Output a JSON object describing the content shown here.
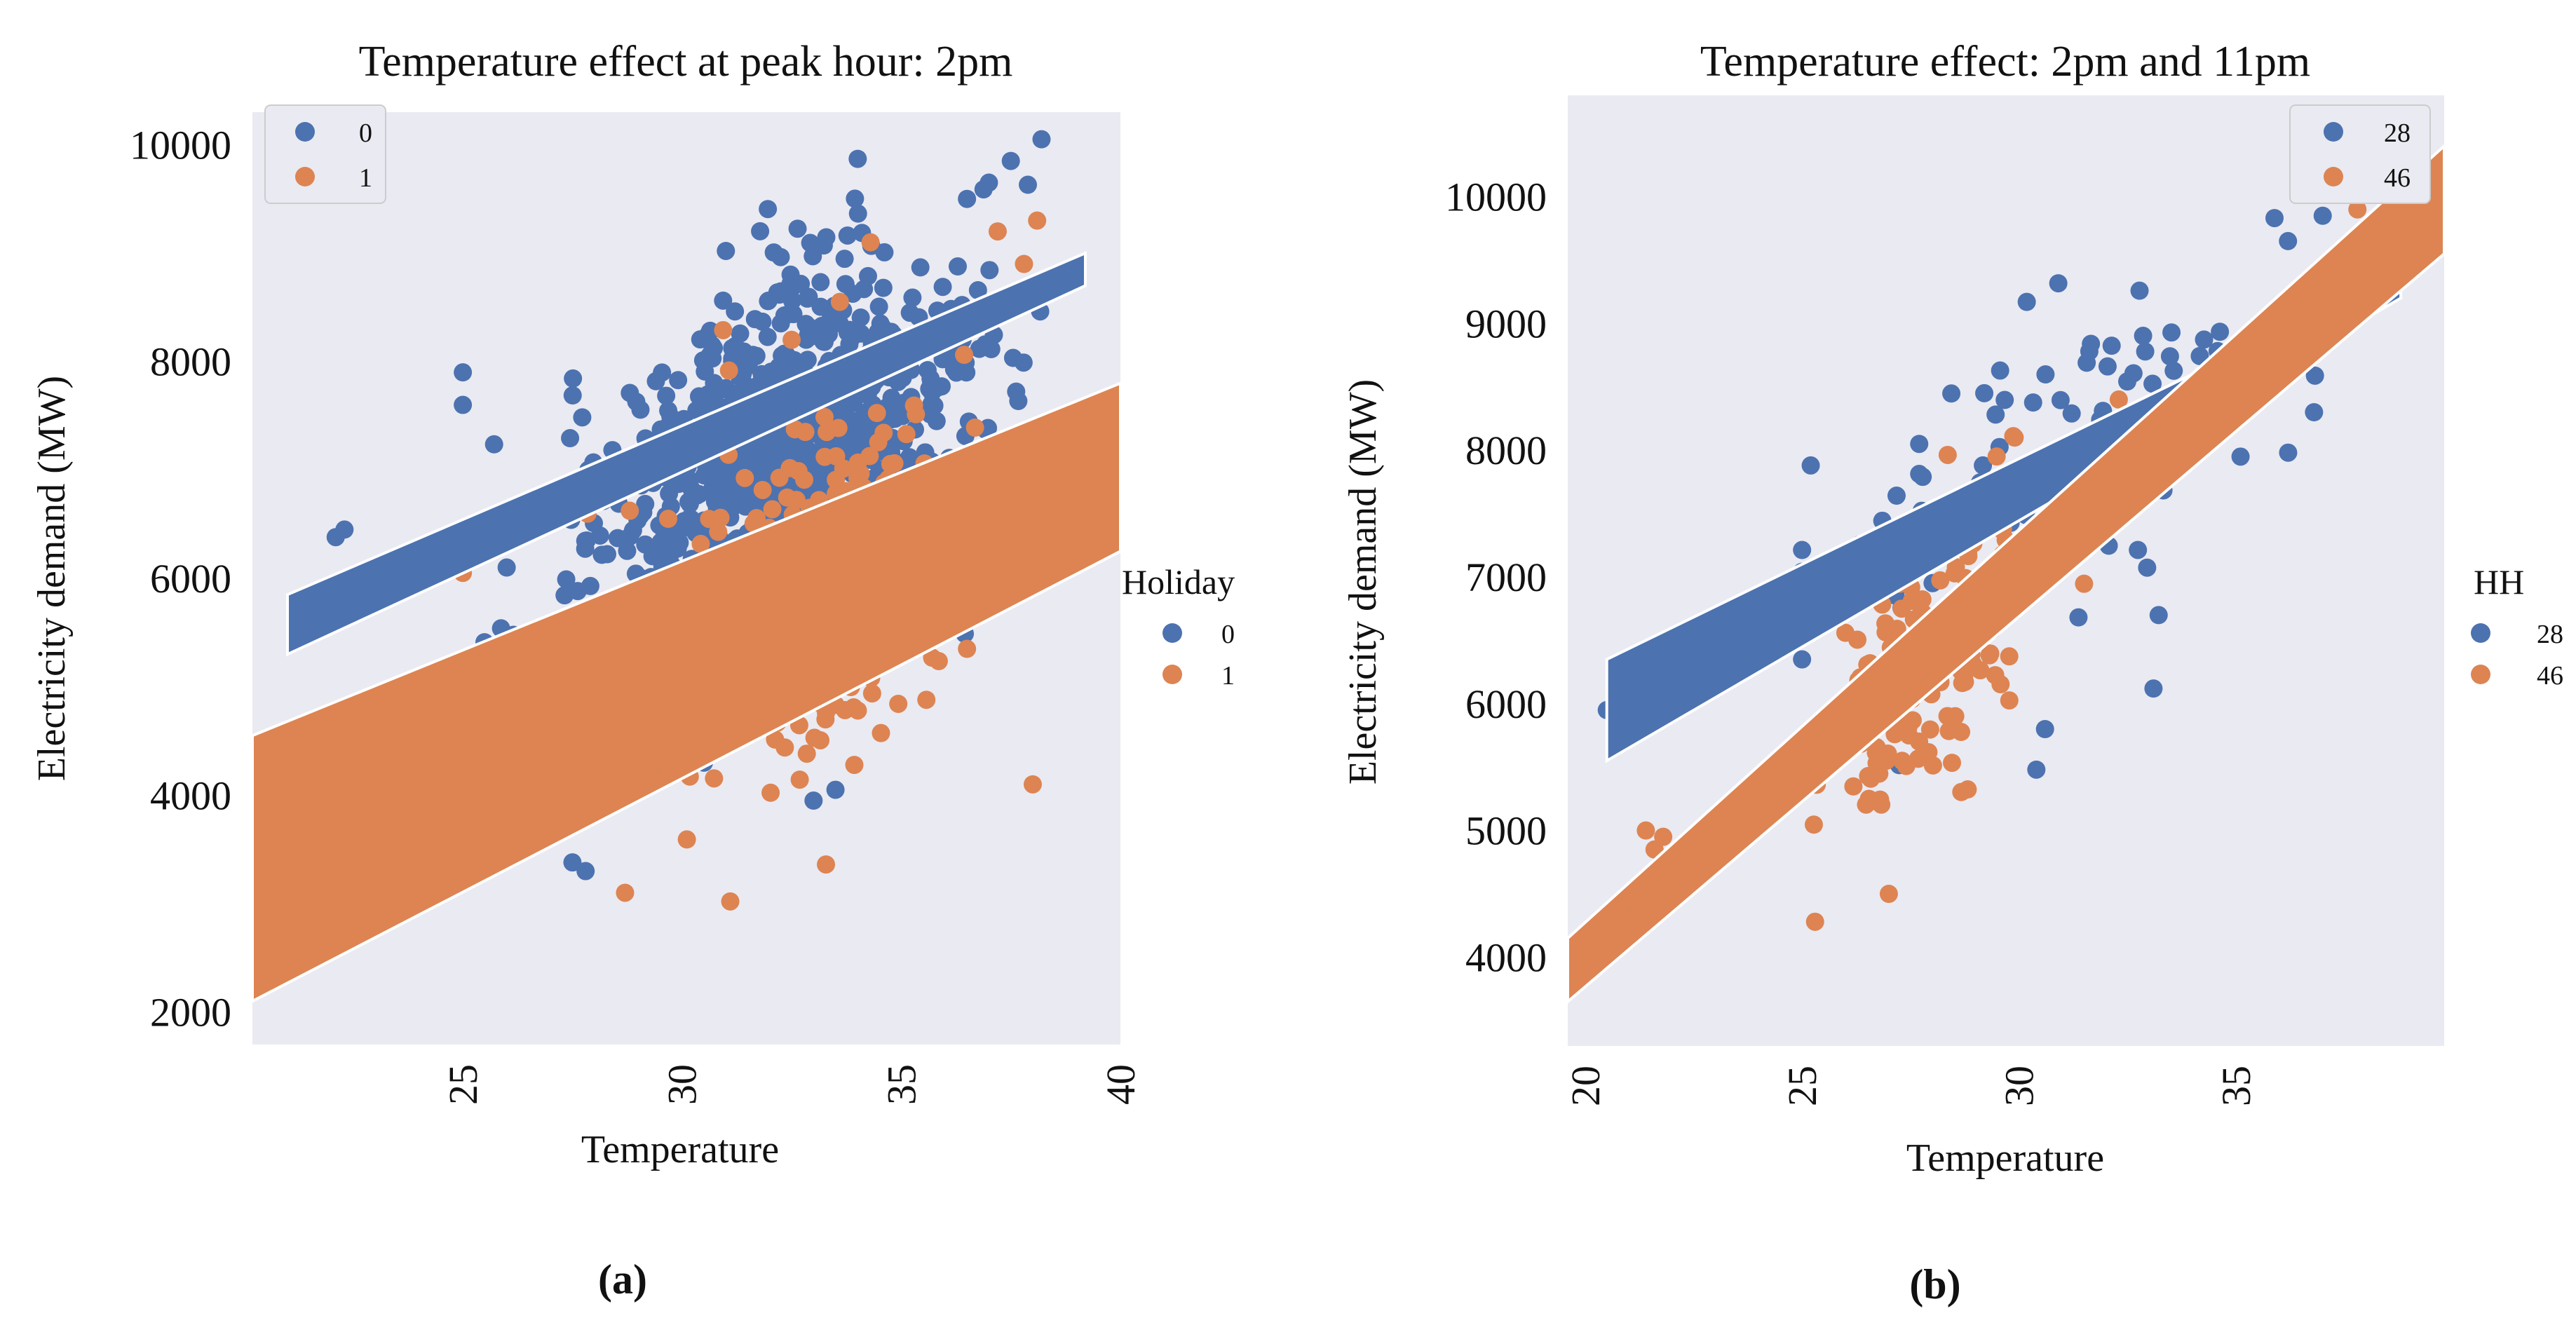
{
  "colors": {
    "blue": "#4c72b0",
    "orange": "#dd8452",
    "plot_bg": "#eaeaf2"
  },
  "chart_data": [
    {
      "type": "scatter",
      "panel_label": "(a)",
      "title": "Temperature effect at peak hour: 2pm",
      "xlabel": "Temperature",
      "ylabel": "Electricity demand (MW)",
      "xlim": [
        20.2,
        40
      ],
      "ylim": [
        1700,
        10300
      ],
      "xticks": [
        25,
        30,
        35,
        40
      ],
      "yticks": [
        2000,
        4000,
        6000,
        8000,
        10000
      ],
      "legend_inner": {
        "entries": [
          "0",
          "1"
        ]
      },
      "legend_outer": {
        "title": "Holiday",
        "entries": [
          "0",
          "1"
        ]
      },
      "series": [
        {
          "name": "0",
          "color": "#4c72b0",
          "cloud": {
            "n": 900,
            "x_mean": 32.2,
            "x_sd": 2.1,
            "y_base": 7100,
            "slope": 190,
            "y_sd": 800,
            "x_min": 21.5,
            "x_max": 38.3
          },
          "points": [
            [
              22.3,
              6450
            ],
            [
              22.1,
              6380
            ],
            [
              25.0,
              7900
            ],
            [
              25.0,
              7600
            ],
            [
              26.0,
              6100
            ],
            [
              27.2,
              5400
            ],
            [
              27.5,
              3380
            ],
            [
              27.8,
              3300
            ],
            [
              27.5,
              4150
            ],
            [
              26.8,
              6600
            ],
            [
              28.5,
              4700
            ],
            [
              31.0,
              9020
            ],
            [
              36.5,
              9500
            ],
            [
              37.0,
              9650
            ],
            [
              38.2,
              10050
            ],
            [
              37.5,
              9850
            ],
            [
              30.5,
              4300
            ],
            [
              33.5,
              4050
            ],
            [
              33.0,
              3950
            ],
            [
              31.2,
              4750
            ]
          ],
          "ci_band": {
            "x0": 21.0,
            "x1": 39.2,
            "lower0": 5300,
            "upper0": 5850,
            "lower1": 8700,
            "upper1": 9000
          }
        },
        {
          "name": "1",
          "color": "#dd8452",
          "cloud": {
            "n": 230,
            "x_mean": 32.8,
            "x_sd": 1.7,
            "y_base": 5900,
            "slope": 140,
            "y_sd": 1000,
            "x_min": 25.0,
            "x_max": 38.2
          },
          "points": [
            [
              25.0,
              6050
            ],
            [
              28.7,
              3100
            ],
            [
              31.1,
              3020
            ],
            [
              38.0,
              4100
            ],
            [
              37.8,
              8900
            ],
            [
              37.2,
              9200
            ],
            [
              38.1,
              9300
            ],
            [
              34.3,
              9100
            ],
            [
              33.3,
              7350
            ],
            [
              36.5,
              5350
            ],
            [
              33.6,
              8550
            ],
            [
              32.5,
              8200
            ]
          ],
          "ci_band": {
            "x0": 20.2,
            "x1": 40.0,
            "lower0": 2100,
            "upper0": 4550,
            "lower1": 6250,
            "upper1": 7800
          }
        }
      ]
    },
    {
      "type": "scatter",
      "panel_label": "(b)",
      "title": "Temperature effect: 2pm and 11pm",
      "xlabel": "Temperature",
      "ylabel": "Electricity demand (MW)",
      "xlim": [
        19.6,
        39.8
      ],
      "ylim": [
        3300,
        10800
      ],
      "xticks": [
        20,
        25,
        30,
        35
      ],
      "yticks": [
        4000,
        5000,
        6000,
        7000,
        8000,
        9000,
        10000
      ],
      "legend_inner": {
        "entries": [
          "28",
          "46"
        ]
      },
      "legend_outer": {
        "title": "HH",
        "entries": [
          "28",
          "46"
        ]
      },
      "series": [
        {
          "name": "28",
          "color": "#4c72b0",
          "cloud": {
            "n": 95,
            "x_mean": 31.0,
            "x_sd": 2.6,
            "y_base": 7900,
            "slope": 160,
            "y_sd": 550,
            "x_min": 25.0,
            "x_max": 38.8
          },
          "points": [
            [
              20.5,
              5950
            ],
            [
              25.2,
              7880
            ],
            [
              25.0,
              6350
            ],
            [
              27.7,
              8050
            ],
            [
              29.2,
              8450
            ],
            [
              30.4,
              5480
            ],
            [
              30.6,
              5800
            ],
            [
              33.1,
              6120
            ],
            [
              36.8,
              8300
            ],
            [
              37.0,
              9850
            ],
            [
              36.2,
              9650
            ],
            [
              39.5,
              10000
            ]
          ],
          "ci_band": {
            "x0": 20.5,
            "x1": 38.8,
            "lower0": 5550,
            "upper0": 6350,
            "lower1": 9200,
            "upper1": 9400
          }
        },
        {
          "name": "46",
          "color": "#dd8452",
          "cloud": {
            "n": 175,
            "x_mean": 27.8,
            "x_sd": 1.3,
            "y_base": 6300,
            "slope": 300,
            "y_sd": 450,
            "x_min": 24.8,
            "x_max": 31.5
          },
          "points": [
            [
              21.4,
              5000
            ],
            [
              21.8,
              4950
            ],
            [
              21.6,
              4850
            ],
            [
              25.3,
              4280
            ],
            [
              27.0,
              4500
            ],
            [
              29.9,
              8100
            ],
            [
              31.5,
              7600
            ],
            [
              31.2,
              7700
            ],
            [
              32.3,
              8400
            ],
            [
              30.5,
              7000
            ],
            [
              34.2,
              8300
            ],
            [
              37.8,
              9900
            ],
            [
              38.6,
              10050
            ]
          ],
          "ci_band": {
            "x0": 19.6,
            "x1": 39.8,
            "lower0": 3650,
            "upper0": 4150,
            "lower1": 9550,
            "upper1": 10400
          }
        }
      ]
    }
  ]
}
